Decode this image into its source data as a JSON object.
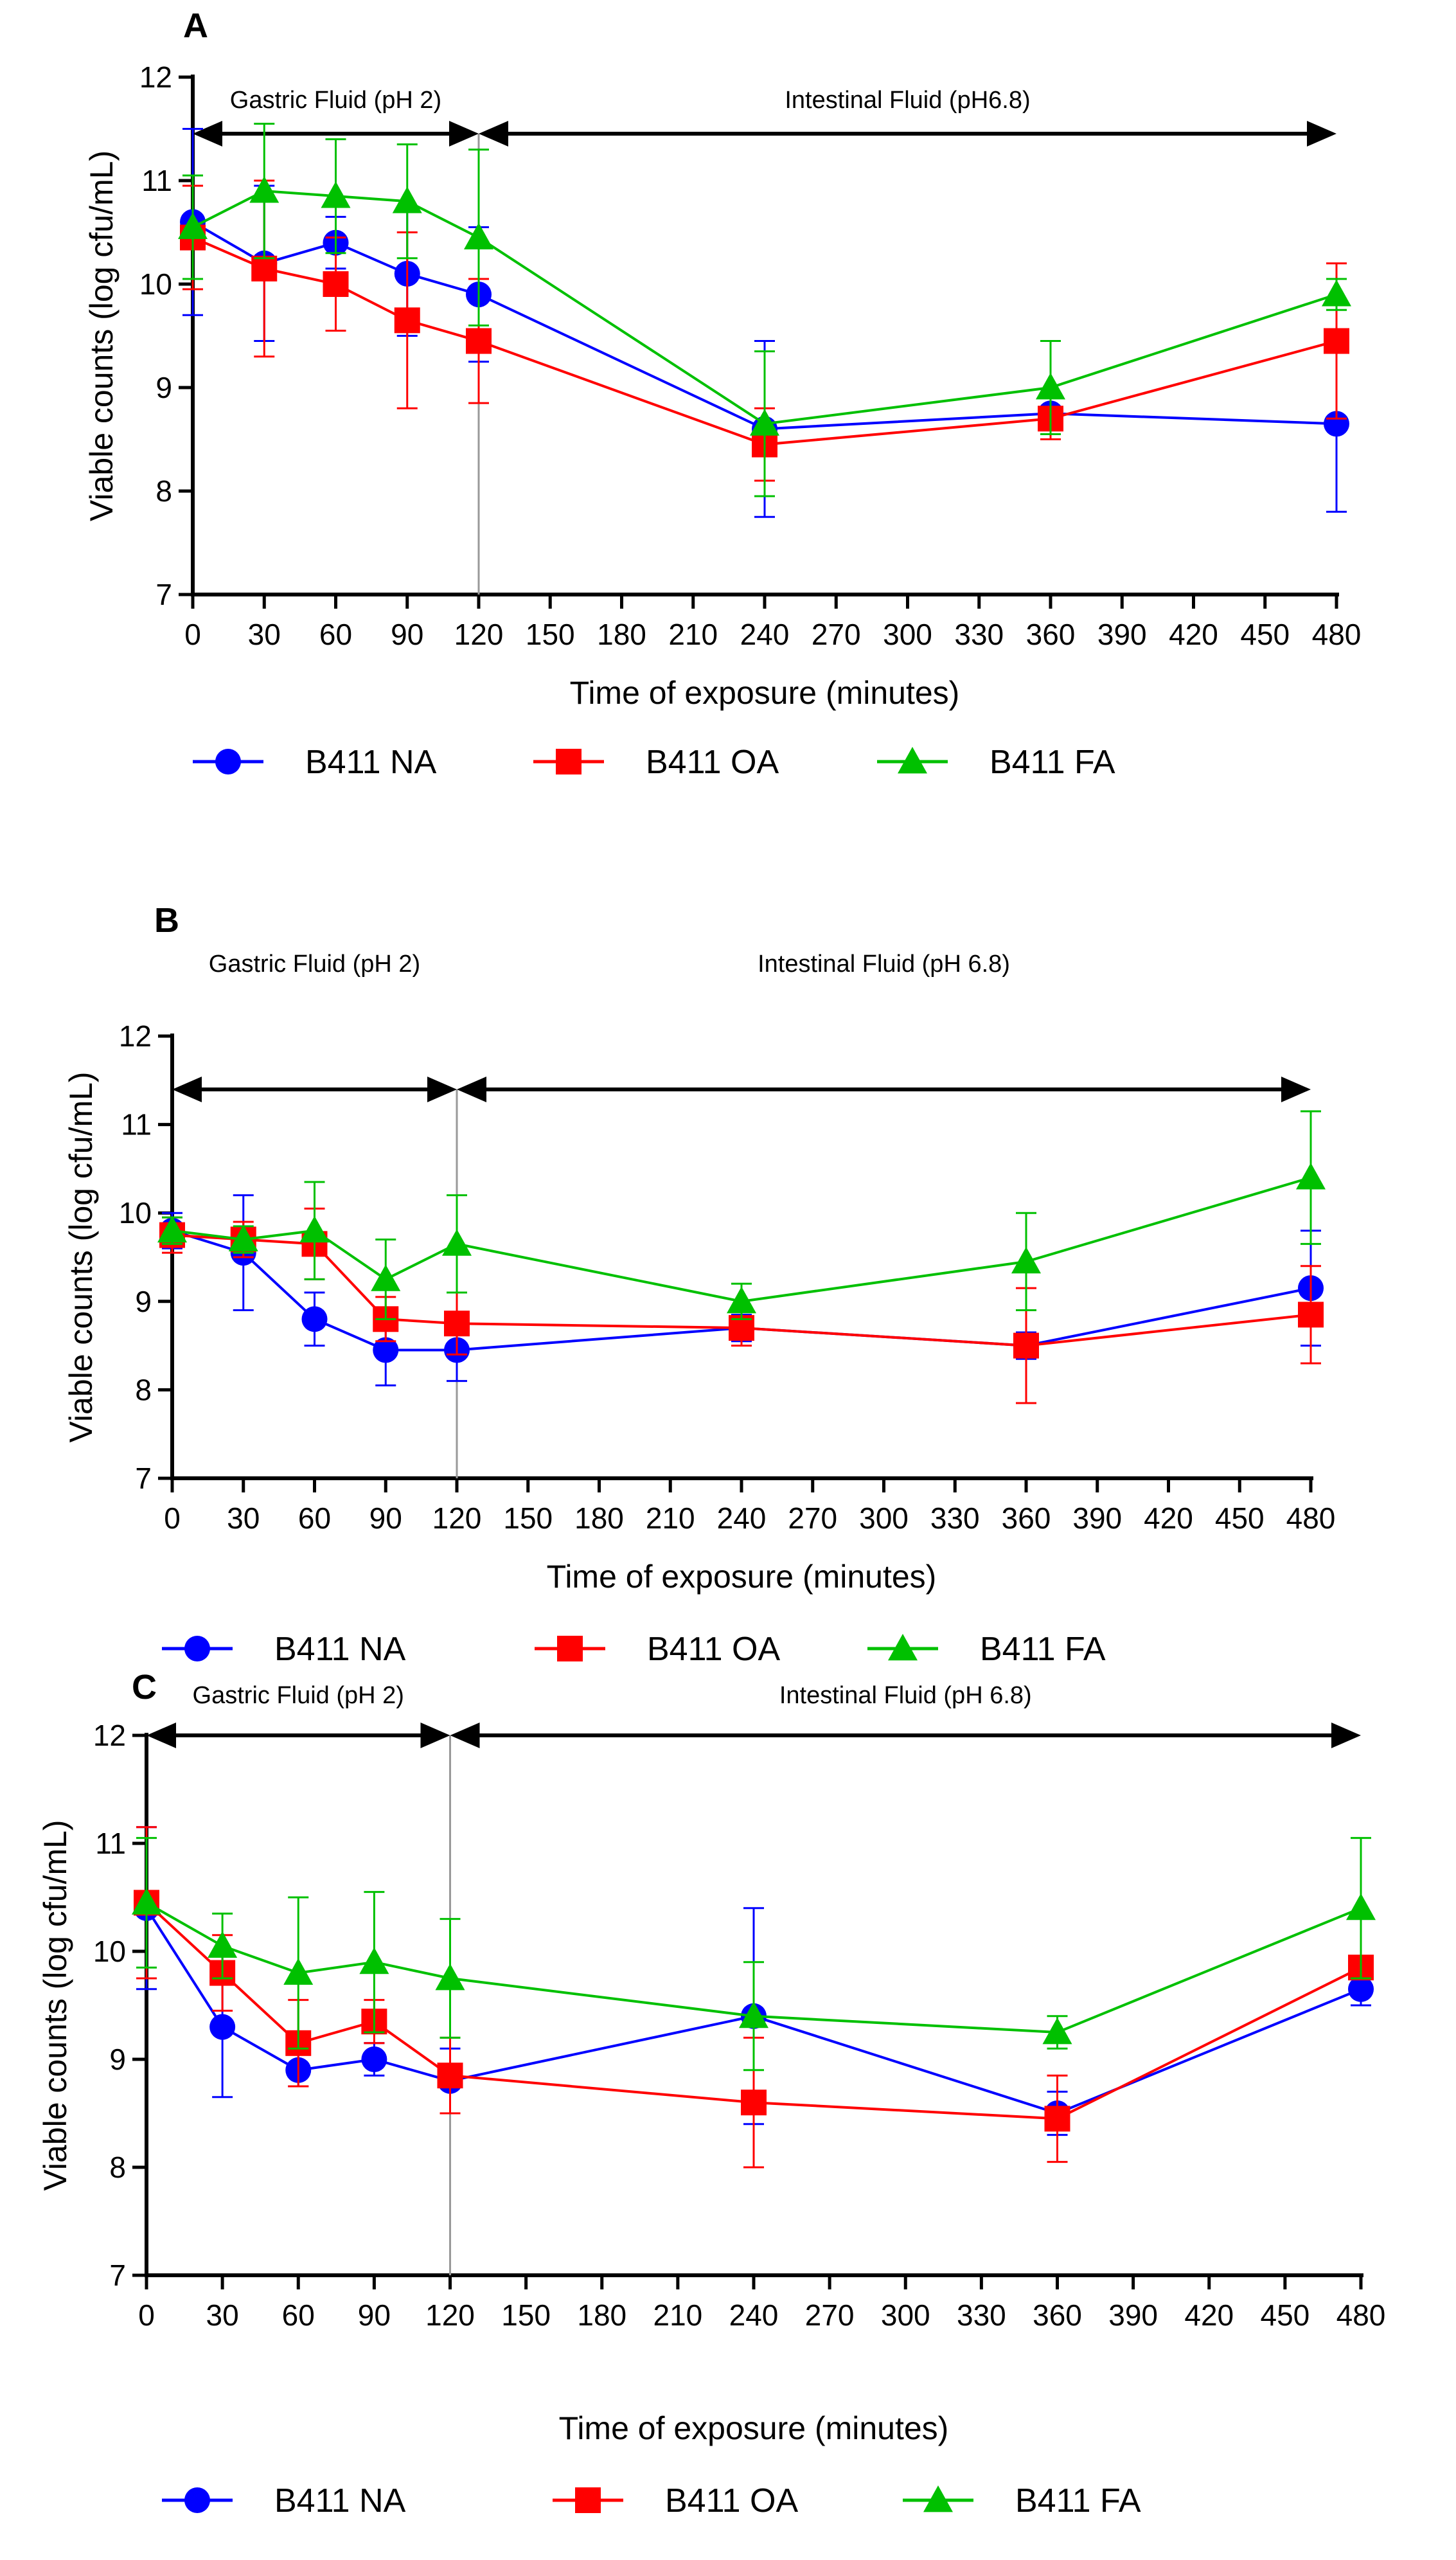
{
  "chart_data": [
    {
      "type": "line",
      "panel": "A",
      "xlabel": "Time of exposure (minutes)",
      "ylabel": "Viable counts (log cfu/mL)",
      "xlim": [
        0,
        480
      ],
      "ylim": [
        7,
        12
      ],
      "x_ticks": [
        "0",
        "30",
        "60",
        "90",
        "120",
        "150",
        "180",
        "210",
        "240",
        "270",
        "300",
        "330",
        "360",
        "390",
        "420",
        "450",
        "480"
      ],
      "y_ticks": [
        "7",
        "8",
        "9",
        "10",
        "11",
        "12"
      ],
      "phases": [
        {
          "label": "Gastric Fluid (pH 2)",
          "start": 0,
          "end": 120
        },
        {
          "label": "Intestinal Fluid (pH6.8)",
          "start": 120,
          "end": 480
        }
      ],
      "x": [
        0,
        30,
        60,
        90,
        120,
        240,
        360,
        480
      ],
      "series": [
        {
          "name": "B411 NA",
          "color": "#0000ff",
          "marker": "circle",
          "values": [
            10.6,
            10.2,
            10.4,
            10.1,
            9.9,
            8.6,
            8.75,
            8.65
          ],
          "errors": [
            0.9,
            0.75,
            0.25,
            0.6,
            0.65,
            0.85,
            0.2,
            0.85
          ]
        },
        {
          "name": "B411 OA",
          "color": "#ff0000",
          "marker": "square",
          "values": [
            10.45,
            10.15,
            10.0,
            9.65,
            9.45,
            8.45,
            8.7,
            9.45
          ],
          "errors": [
            0.5,
            0.85,
            0.45,
            0.85,
            0.6,
            0.35,
            0.2,
            0.75
          ]
        },
        {
          "name": "B411 FA",
          "color": "#00c000",
          "marker": "triangle",
          "values": [
            10.55,
            10.9,
            10.85,
            10.8,
            10.45,
            8.65,
            9.0,
            9.9
          ],
          "errors": [
            0.5,
            0.65,
            0.55,
            0.55,
            0.85,
            0.7,
            0.45,
            0.15
          ]
        }
      ]
    },
    {
      "type": "line",
      "panel": "B",
      "xlabel": "Time of exposure (minutes)",
      "ylabel": "Viable counts (log cfu/mL)",
      "xlim": [
        0,
        480
      ],
      "ylim": [
        7,
        12
      ],
      "x_ticks": [
        "0",
        "30",
        "60",
        "90",
        "120",
        "150",
        "180",
        "210",
        "240",
        "270",
        "300",
        "330",
        "360",
        "390",
        "420",
        "450",
        "480"
      ],
      "y_ticks": [
        "7",
        "8",
        "9",
        "10",
        "11",
        "12"
      ],
      "phases": [
        {
          "label": "Gastric Fluid (pH 2)",
          "start": 0,
          "end": 120
        },
        {
          "label": "Intestinal Fluid (pH 6.8)",
          "start": 120,
          "end": 480
        }
      ],
      "x": [
        0,
        30,
        60,
        90,
        120,
        240,
        360,
        480
      ],
      "series": [
        {
          "name": "B411 NA",
          "color": "#0000ff",
          "marker": "circle",
          "values": [
            9.8,
            9.55,
            8.8,
            8.45,
            8.45,
            8.7,
            8.5,
            9.15
          ],
          "errors": [
            0.2,
            0.65,
            0.3,
            0.4,
            0.35,
            0.15,
            0.15,
            0.65
          ]
        },
        {
          "name": "B411 OA",
          "color": "#ff0000",
          "marker": "square",
          "values": [
            9.75,
            9.7,
            9.65,
            8.8,
            8.75,
            8.7,
            8.5,
            8.85
          ],
          "errors": [
            0.2,
            0.2,
            0.4,
            0.25,
            0.35,
            0.2,
            0.65,
            0.55
          ]
        },
        {
          "name": "B411 FA",
          "color": "#00c000",
          "marker": "triangle",
          "values": [
            9.8,
            9.7,
            9.8,
            9.25,
            9.65,
            9.0,
            9.45,
            10.4
          ],
          "errors": [
            0.15,
            0.15,
            0.55,
            0.45,
            0.55,
            0.2,
            0.55,
            0.75
          ]
        }
      ]
    },
    {
      "type": "line",
      "panel": "C",
      "xlabel": "Time of exposure (minutes)",
      "ylabel": "Viable counts (log cfu/mL)",
      "xlim": [
        0,
        480
      ],
      "ylim": [
        7,
        12
      ],
      "x_ticks": [
        "0",
        "30",
        "60",
        "90",
        "120",
        "150",
        "180",
        "210",
        "240",
        "270",
        "300",
        "330",
        "360",
        "390",
        "420",
        "450",
        "480"
      ],
      "y_ticks": [
        "7",
        "8",
        "9",
        "10",
        "11",
        "12"
      ],
      "phases": [
        {
          "label": "Gastric Fluid (pH 2)",
          "start": 0,
          "end": 120
        },
        {
          "label": "Intestinal Fluid (pH 6.8)",
          "start": 120,
          "end": 480
        }
      ],
      "x": [
        0,
        30,
        60,
        90,
        120,
        240,
        360,
        480
      ],
      "series": [
        {
          "name": "B411 NA",
          "color": "#0000ff",
          "marker": "circle",
          "values": [
            10.4,
            9.3,
            8.9,
            9.0,
            8.8,
            9.4,
            8.5,
            9.65
          ],
          "errors": [
            0.75,
            0.65,
            0.15,
            0.15,
            0.3,
            1.0,
            0.2,
            0.15
          ]
        },
        {
          "name": "B411 OA",
          "color": "#ff0000",
          "marker": "square",
          "values": [
            10.45,
            9.8,
            9.15,
            9.35,
            8.85,
            8.6,
            8.45,
            9.85
          ],
          "errors": [
            0.7,
            0.35,
            0.4,
            0.2,
            0.35,
            0.6,
            0.4,
            0.1
          ]
        },
        {
          "name": "B411 FA",
          "color": "#00c000",
          "marker": "triangle",
          "values": [
            10.45,
            10.05,
            9.8,
            9.9,
            9.75,
            9.4,
            9.25,
            10.4
          ],
          "errors": [
            0.6,
            0.3,
            0.7,
            0.65,
            0.55,
            0.5,
            0.15,
            0.65
          ]
        }
      ]
    }
  ]
}
